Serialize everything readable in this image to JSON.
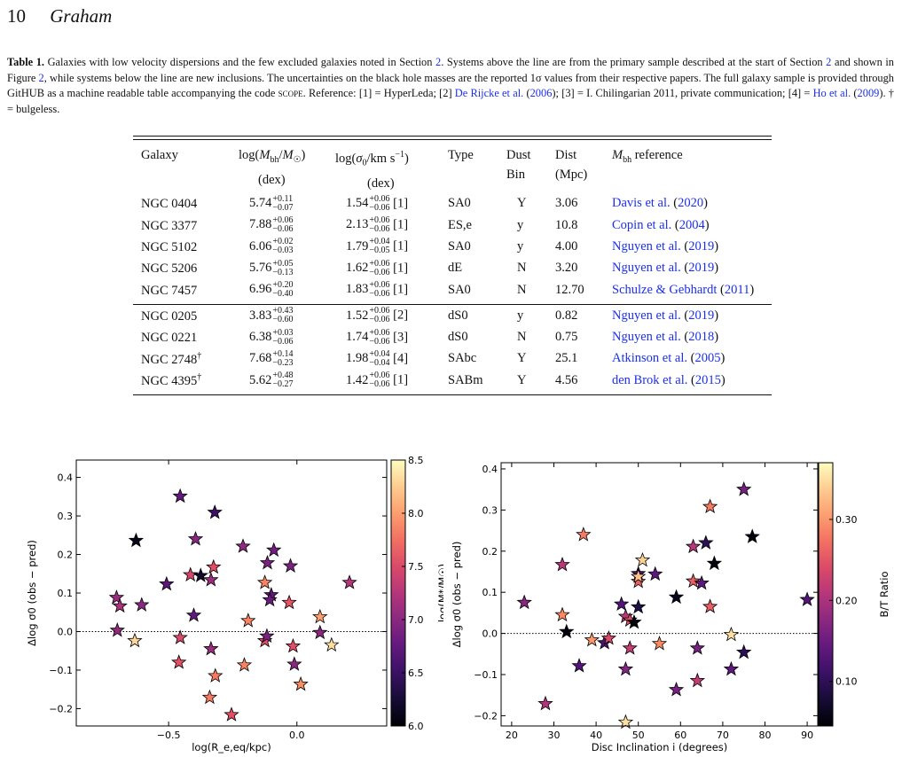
{
  "header": {
    "page_number": "10",
    "author": "Graham"
  },
  "caption": {
    "label": "Table 1.",
    "s1": " Galaxies with low velocity dispersions and the few excluded galaxies noted in Section ",
    "sec": "2",
    "s2": ". Systems above the line are from the primary sample described at the start of Section ",
    "s3": " and shown in Figure ",
    "fig": "2",
    "s4": ", while systems below the line are new inclusions. The uncertainties on the black hole masses are the reported 1σ values from their respective papers. The full galaxy sample is provided through GitHUB as a machine readable table accompanying the code ",
    "scope": "scope",
    "s5": ". Reference: [1] = HyperLeda; [2] ",
    "ref2": "De Rijcke et al.",
    "ref2y": "2006",
    "s6": "; [3] = I. Chilingarian 2011, private communication; [4] = ",
    "ref4": "Ho et al.",
    "ref4y": "2009",
    "s7": "). † = bulgeless."
  },
  "table": {
    "headers": [
      {
        "l1": "Galaxy",
        "l2": ""
      },
      {
        "l1": "log(Mbh/M☉)",
        "l2": "(dex)"
      },
      {
        "l1": "log(σ0/km s⁻¹)",
        "l2": "(dex)"
      },
      {
        "l1": "Type",
        "l2": ""
      },
      {
        "l1": "Dust",
        "l2": "Bin"
      },
      {
        "l1": "Dist",
        "l2": "(Mpc)"
      },
      {
        "l1": "Mbh reference",
        "l2": ""
      }
    ],
    "primary": [
      {
        "galaxy": "NGC 0404",
        "dagger": "",
        "m": "5.74",
        "mp": "+0.11",
        "mm": "−0.07",
        "s": "1.54",
        "sp": "+0.06",
        "sm": "−0.06",
        "ref": "[1]",
        "type": "SA0",
        "dust": "Y",
        "dist": "3.06",
        "cite": "Davis et al.",
        "year": "2020"
      },
      {
        "galaxy": "NGC 3377",
        "dagger": "",
        "m": "7.88",
        "mp": "+0.06",
        "mm": "−0.06",
        "s": "2.13",
        "sp": "+0.06",
        "sm": "−0.06",
        "ref": "[1]",
        "type": "ES,e",
        "dust": "y",
        "dist": "10.8",
        "cite": "Copin et al.",
        "year": "2004"
      },
      {
        "galaxy": "NGC 5102",
        "dagger": "",
        "m": "6.06",
        "mp": "+0.02",
        "mm": "−0.03",
        "s": "1.79",
        "sp": "+0.04",
        "sm": "−0.05",
        "ref": "[1]",
        "type": "SA0",
        "dust": "y",
        "dist": "4.00",
        "cite": "Nguyen et al.",
        "year": "2019"
      },
      {
        "galaxy": "NGC 5206",
        "dagger": "",
        "m": "5.76",
        "mp": "+0.05",
        "mm": "−0.13",
        "s": "1.62",
        "sp": "+0.06",
        "sm": "−0.06",
        "ref": "[1]",
        "type": "dE",
        "dust": "N",
        "dist": "3.20",
        "cite": "Nguyen et al.",
        "year": "2019"
      },
      {
        "galaxy": "NGC 7457",
        "dagger": "",
        "m": "6.96",
        "mp": "+0.20",
        "mm": "−0.40",
        "s": "1.83",
        "sp": "+0.06",
        "sm": "−0.06",
        "ref": "[1]",
        "type": "SA0",
        "dust": "N",
        "dist": "12.70",
        "cite": "Schulze & Gebhardt",
        "year": "2011"
      }
    ],
    "new": [
      {
        "galaxy": "NGC 0205",
        "dagger": "",
        "m": "3.83",
        "mp": "+0.43",
        "mm": "−0.60",
        "s": "1.52",
        "sp": "+0.06",
        "sm": "−0.06",
        "ref": "[2]",
        "type": "dS0",
        "dust": "y",
        "dist": "0.82",
        "cite": "Nguyen et al.",
        "year": "2019"
      },
      {
        "galaxy": "NGC 0221",
        "dagger": "",
        "m": "6.38",
        "mp": "+0.03",
        "mm": "−0.06",
        "s": "1.74",
        "sp": "+0.06",
        "sm": "−0.06",
        "ref": "[3]",
        "type": "dS0",
        "dust": "N",
        "dist": "0.75",
        "cite": "Nguyen et al.",
        "year": "2018"
      },
      {
        "galaxy": "NGC 2748",
        "dagger": "†",
        "m": "7.68",
        "mp": "+0.14",
        "mm": "−0.23",
        "s": "1.98",
        "sp": "+0.04",
        "sm": "−0.04",
        "ref": "[4]",
        "type": "SAbc",
        "dust": "Y",
        "dist": "25.1",
        "cite": "Atkinson et al.",
        "year": "2005"
      },
      {
        "galaxy": "NGC 4395",
        "dagger": "†",
        "m": "5.62",
        "mp": "+0.48",
        "mm": "−0.27",
        "s": "1.42",
        "sp": "+0.06",
        "sm": "−0.06",
        "ref": "[1]",
        "type": "SABm",
        "dust": "Y",
        "dist": "4.56",
        "cite": "den Brok et al.",
        "year": "2015"
      }
    ]
  },
  "colors": {
    "link": "#1a2ff0"
  },
  "chart_data": [
    {
      "type": "scatter",
      "xlabel": "log(R_e,eq/kpc)",
      "ylabel": "Δlog σ0 (obs − pred)",
      "colorbar_label": "log(M*/M☉)",
      "xlim": [
        -0.86,
        0.35
      ],
      "ylim": [
        -0.245,
        0.445
      ],
      "xticks": [
        "−0.5",
        "0.0"
      ],
      "xtick_values": [
        -0.5,
        0.0
      ],
      "yticks": [
        "−0.2",
        "−0.1",
        "0.0",
        "0.1",
        "0.2",
        "0.3",
        "0.4"
      ],
      "ytick_values": [
        -0.2,
        -0.1,
        0.0,
        0.1,
        0.2,
        0.3,
        0.4
      ],
      "cbar_range": [
        6.0,
        8.5
      ],
      "cbar_ticks": [
        "6.0",
        "6.5",
        "7.0",
        "7.5",
        "8.0",
        "8.5"
      ],
      "cbar_tick_values": [
        6.0,
        6.5,
        7.0,
        7.5,
        8.0,
        8.5
      ],
      "hline": 0.0,
      "points": [
        {
          "x": -0.703,
          "y": 0.088,
          "c": 7.1
        },
        {
          "x": -0.69,
          "y": 0.066,
          "c": 7.2
        },
        {
          "x": -0.7,
          "y": 0.003,
          "c": 7.05
        },
        {
          "x": -0.627,
          "y": 0.236,
          "c": 6.1
        },
        {
          "x": -0.605,
          "y": 0.069,
          "c": 7.0
        },
        {
          "x": -0.632,
          "y": -0.024,
          "c": 8.3
        },
        {
          "x": -0.508,
          "y": 0.123,
          "c": 6.7
        },
        {
          "x": -0.455,
          "y": 0.351,
          "c": 6.75
        },
        {
          "x": -0.46,
          "y": -0.08,
          "c": 7.55
        },
        {
          "x": -0.455,
          "y": -0.016,
          "c": 7.5
        },
        {
          "x": -0.415,
          "y": 0.147,
          "c": 7.45
        },
        {
          "x": -0.395,
          "y": 0.24,
          "c": 7.0
        },
        {
          "x": -0.402,
          "y": 0.042,
          "c": 6.75
        },
        {
          "x": -0.375,
          "y": 0.145,
          "c": 6.2
        },
        {
          "x": -0.335,
          "y": 0.134,
          "c": 7.1
        },
        {
          "x": -0.32,
          "y": 0.309,
          "c": 6.5
        },
        {
          "x": -0.325,
          "y": 0.167,
          "c": 7.55
        },
        {
          "x": -0.335,
          "y": -0.045,
          "c": 7.1
        },
        {
          "x": -0.318,
          "y": -0.115,
          "c": 7.8
        },
        {
          "x": -0.34,
          "y": -0.171,
          "c": 7.8
        },
        {
          "x": -0.255,
          "y": -0.216,
          "c": 7.55
        },
        {
          "x": -0.21,
          "y": 0.221,
          "c": 7.05
        },
        {
          "x": -0.19,
          "y": 0.028,
          "c": 7.85
        },
        {
          "x": -0.205,
          "y": -0.087,
          "c": 7.85
        },
        {
          "x": -0.125,
          "y": 0.127,
          "c": 7.85
        },
        {
          "x": -0.115,
          "y": 0.178,
          "c": 6.9
        },
        {
          "x": -0.09,
          "y": 0.211,
          "c": 6.85
        },
        {
          "x": -0.1,
          "y": 0.095,
          "c": 6.75
        },
        {
          "x": -0.125,
          "y": -0.024,
          "c": 7.55
        },
        {
          "x": -0.117,
          "y": -0.012,
          "c": 6.9
        },
        {
          "x": -0.106,
          "y": 0.082,
          "c": 6.8
        },
        {
          "x": -0.025,
          "y": 0.17,
          "c": 6.9
        },
        {
          "x": -0.03,
          "y": 0.075,
          "c": 7.6
        },
        {
          "x": -0.015,
          "y": -0.038,
          "c": 7.55
        },
        {
          "x": -0.01,
          "y": -0.085,
          "c": 7.0
        },
        {
          "x": 0.015,
          "y": -0.137,
          "c": 7.9
        },
        {
          "x": 0.09,
          "y": 0.038,
          "c": 8.0
        },
        {
          "x": 0.09,
          "y": -0.003,
          "c": 7.0
        },
        {
          "x": 0.135,
          "y": -0.035,
          "c": 8.35
        },
        {
          "x": 0.205,
          "y": 0.127,
          "c": 7.25
        }
      ]
    },
    {
      "type": "scatter",
      "xlabel": "Disc Inclination i (degrees)",
      "ylabel": "Δlog σ0 (obs − pred)",
      "colorbar_label": "B/T Ratio",
      "xlim": [
        17.5,
        92.5
      ],
      "ylim": [
        -0.225,
        0.415
      ],
      "xticks": [
        "20",
        "30",
        "40",
        "50",
        "60",
        "70",
        "80",
        "90"
      ],
      "xtick_values": [
        20,
        30,
        40,
        50,
        60,
        70,
        80,
        90
      ],
      "yticks": [
        "−0.2",
        "−0.1",
        "0.0",
        "0.1",
        "0.2",
        "0.3",
        "0.4"
      ],
      "ytick_values": [
        -0.2,
        -0.1,
        0.0,
        0.1,
        0.2,
        0.3,
        0.4
      ],
      "cbar_range": [
        0.045,
        0.37
      ],
      "cbar_ticks": [
        "0.10",
        "0.20",
        "0.30"
      ],
      "cbar_tick_values": [
        0.1,
        0.2,
        0.3
      ],
      "hline": 0.0,
      "points": [
        {
          "x": 23,
          "y": 0.075,
          "c": 0.175
        },
        {
          "x": 28,
          "y": -0.171,
          "c": 0.205
        },
        {
          "x": 32,
          "y": 0.167,
          "c": 0.21
        },
        {
          "x": 32,
          "y": 0.045,
          "c": 0.29
        },
        {
          "x": 33,
          "y": 0.004,
          "c": 0.05
        },
        {
          "x": 36,
          "y": -0.079,
          "c": 0.13
        },
        {
          "x": 37,
          "y": 0.24,
          "c": 0.28
        },
        {
          "x": 39,
          "y": -0.016,
          "c": 0.3
        },
        {
          "x": 42,
          "y": -0.023,
          "c": 0.12
        },
        {
          "x": 43,
          "y": -0.012,
          "c": 0.24
        },
        {
          "x": 46,
          "y": 0.071,
          "c": 0.13
        },
        {
          "x": 47,
          "y": 0.041,
          "c": 0.21
        },
        {
          "x": 47,
          "y": -0.087,
          "c": 0.17
        },
        {
          "x": 47,
          "y": -0.216,
          "c": 0.35
        },
        {
          "x": 48,
          "y": -0.036,
          "c": 0.22
        },
        {
          "x": 48,
          "y": 0.032,
          "c": 0.25
        },
        {
          "x": 49,
          "y": 0.027,
          "c": 0.05
        },
        {
          "x": 50,
          "y": 0.145,
          "c": 0.12
        },
        {
          "x": 50,
          "y": 0.126,
          "c": 0.26
        },
        {
          "x": 50,
          "y": 0.138,
          "c": 0.33
        },
        {
          "x": 50,
          "y": 0.064,
          "c": 0.09
        },
        {
          "x": 51,
          "y": 0.178,
          "c": 0.34
        },
        {
          "x": 54,
          "y": 0.144,
          "c": 0.14
        },
        {
          "x": 55,
          "y": -0.025,
          "c": 0.29
        },
        {
          "x": 59,
          "y": 0.088,
          "c": 0.06
        },
        {
          "x": 59,
          "y": -0.137,
          "c": 0.16
        },
        {
          "x": 63,
          "y": 0.211,
          "c": 0.21
        },
        {
          "x": 63,
          "y": 0.127,
          "c": 0.26
        },
        {
          "x": 64,
          "y": -0.036,
          "c": 0.16
        },
        {
          "x": 64,
          "y": -0.115,
          "c": 0.22
        },
        {
          "x": 65,
          "y": 0.122,
          "c": 0.14
        },
        {
          "x": 66,
          "y": 0.22,
          "c": 0.1
        },
        {
          "x": 67,
          "y": 0.065,
          "c": 0.26
        },
        {
          "x": 67,
          "y": 0.308,
          "c": 0.28
        },
        {
          "x": 68,
          "y": 0.17,
          "c": 0.05
        },
        {
          "x": 72,
          "y": -0.003,
          "c": 0.35
        },
        {
          "x": 72,
          "y": -0.087,
          "c": 0.14
        },
        {
          "x": 75,
          "y": 0.35,
          "c": 0.16
        },
        {
          "x": 75,
          "y": -0.046,
          "c": 0.1
        },
        {
          "x": 77,
          "y": 0.235,
          "c": 0.05
        },
        {
          "x": 90,
          "y": 0.082,
          "c": 0.13
        }
      ]
    }
  ]
}
